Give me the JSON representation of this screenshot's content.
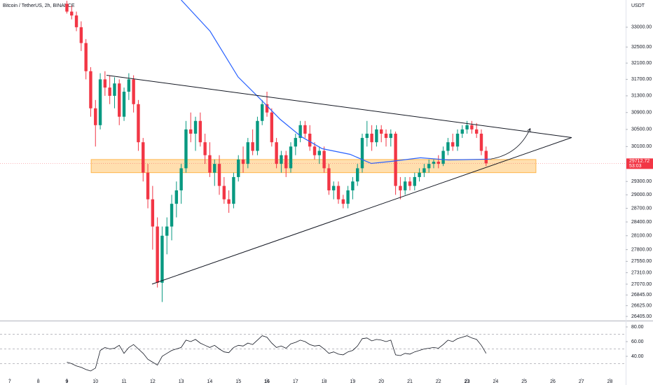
{
  "chart_data": {
    "type": "candlestick",
    "title": "Bitcoin / TetherUS, 2h, BINANCE",
    "currency_label": "USDT",
    "log_scale": true,
    "xlim": [
      6.66,
      28.55
    ],
    "ylim": [
      26320,
      33700
    ],
    "xticks": [
      7,
      8,
      9,
      10,
      11,
      12,
      13,
      14,
      15,
      16,
      17,
      18,
      19,
      20,
      21,
      22,
      23,
      24,
      25,
      26,
      27,
      28
    ],
    "bold_xticks": [
      9,
      16,
      23
    ],
    "yticks": [
      {
        "value": 33000,
        "label": "33000.00"
      },
      {
        "value": 32500,
        "label": "32500.00"
      },
      {
        "value": 32100,
        "label": "32100.00"
      },
      {
        "value": 31700,
        "label": "31700.00"
      },
      {
        "value": 31300,
        "label": "31300.00"
      },
      {
        "value": 30900,
        "label": "30900.00"
      },
      {
        "value": 30500,
        "label": "30500.00"
      },
      {
        "value": 30100,
        "label": "30100.00"
      },
      {
        "value": 29300,
        "label": "29300.00"
      },
      {
        "value": 29000,
        "label": "29000.00"
      },
      {
        "value": 28700,
        "label": "28700.00"
      },
      {
        "value": 28400,
        "label": "28400.00"
      },
      {
        "value": 28100,
        "label": "28100.00"
      },
      {
        "value": 27800,
        "label": "27800.00"
      },
      {
        "value": 27550,
        "label": "27550.00"
      },
      {
        "value": 27310,
        "label": "27310.00"
      },
      {
        "value": 27070,
        "label": "27070.00"
      },
      {
        "value": 26845,
        "label": "26845.00"
      },
      {
        "value": 26625,
        "label": "26625.00"
      },
      {
        "value": 26405,
        "label": "26405.00"
      }
    ],
    "up_color": "#089981",
    "down_color": "#f23645",
    "x": [
      9,
      9.167,
      9.333,
      9.5,
      9.667,
      9.833,
      10,
      10.167,
      10.333,
      10.5,
      10.667,
      10.833,
      11,
      11.167,
      11.333,
      11.5,
      11.667,
      11.833,
      12,
      12.167,
      12.333,
      12.5,
      12.667,
      12.833,
      13,
      13.167,
      13.333,
      13.5,
      13.667,
      13.833,
      14,
      14.167,
      14.333,
      14.5,
      14.667,
      14.833,
      15,
      15.167,
      15.333,
      15.5,
      15.667,
      15.833,
      16,
      16.167,
      16.333,
      16.5,
      16.667,
      16.833,
      17,
      17.167,
      17.333,
      17.5,
      17.667,
      17.833,
      18,
      18.167,
      18.333,
      18.5,
      18.667,
      18.833,
      19,
      19.167,
      19.333,
      19.5,
      19.667,
      19.833,
      20,
      20.167,
      20.333,
      20.5,
      20.667,
      20.833,
      21,
      21.167,
      21.333,
      21.5,
      21.667,
      21.833,
      22,
      22.167,
      22.333,
      22.5,
      22.667,
      22.833,
      23,
      23.167,
      23.333,
      23.5,
      23.667
    ],
    "ohlc": [
      [
        33600,
        33680,
        33350,
        33400
      ],
      [
        33400,
        33550,
        33200,
        33300
      ],
      [
        33300,
        33400,
        32900,
        33000
      ],
      [
        33000,
        33150,
        32400,
        32600
      ],
      [
        32600,
        32700,
        31700,
        31900
      ],
      [
        31900,
        32000,
        30800,
        31000
      ],
      [
        31000,
        31200,
        30100,
        30600
      ],
      [
        30600,
        31850,
        30500,
        31700
      ],
      [
        31700,
        31900,
        31300,
        31500
      ],
      [
        31500,
        31800,
        31100,
        31300
      ],
      [
        31300,
        31750,
        31000,
        31600
      ],
      [
        31600,
        31700,
        30600,
        30800
      ],
      [
        30800,
        31500,
        30700,
        31400
      ],
      [
        31400,
        31850,
        31200,
        31700
      ],
      [
        31700,
        31800,
        30900,
        31100
      ],
      [
        31100,
        31200,
        30000,
        30200
      ],
      [
        30200,
        30300,
        29300,
        29500
      ],
      [
        29500,
        29700,
        28700,
        28900
      ],
      [
        28900,
        29200,
        27800,
        28300
      ],
      [
        28300,
        28500,
        27000,
        27100
      ],
      [
        27100,
        28300,
        26700,
        28100
      ],
      [
        28100,
        28500,
        27700,
        28300
      ],
      [
        28300,
        29000,
        28000,
        28800
      ],
      [
        28800,
        29300,
        28500,
        29100
      ],
      [
        29100,
        29700,
        28800,
        29600
      ],
      [
        29600,
        30700,
        29500,
        30500
      ],
      [
        30500,
        30900,
        30200,
        30400
      ],
      [
        30400,
        30800,
        30000,
        30700
      ],
      [
        30700,
        30900,
        30100,
        30200
      ],
      [
        30200,
        30400,
        29700,
        29900
      ],
      [
        29900,
        30200,
        29400,
        29500
      ],
      [
        29500,
        29800,
        29200,
        29700
      ],
      [
        29700,
        29900,
        29000,
        29200
      ],
      [
        29200,
        29400,
        28800,
        28900
      ],
      [
        28900,
        29100,
        28600,
        28800
      ],
      [
        28800,
        29500,
        28700,
        29400
      ],
      [
        29400,
        29900,
        29300,
        29800
      ],
      [
        29800,
        30100,
        29500,
        29700
      ],
      [
        29700,
        30300,
        29600,
        30200
      ],
      [
        30200,
        30500,
        29900,
        30000
      ],
      [
        30000,
        30800,
        29900,
        30700
      ],
      [
        30700,
        31200,
        30600,
        31100
      ],
      [
        31100,
        31400,
        30800,
        30900
      ],
      [
        30900,
        31000,
        30100,
        30200
      ],
      [
        30200,
        30300,
        29600,
        29700
      ],
      [
        29700,
        30000,
        29500,
        29900
      ],
      [
        29900,
        30000,
        29400,
        29600
      ],
      [
        29600,
        30200,
        29500,
        30100
      ],
      [
        30100,
        30400,
        29900,
        30300
      ],
      [
        30300,
        30700,
        30200,
        30600
      ],
      [
        30600,
        30700,
        30300,
        30400
      ],
      [
        30400,
        30600,
        30000,
        30100
      ],
      [
        30100,
        30200,
        29800,
        29900
      ],
      [
        29900,
        30100,
        29700,
        30000
      ],
      [
        30000,
        30100,
        29500,
        29600
      ],
      [
        29600,
        29700,
        29000,
        29100
      ],
      [
        29100,
        29300,
        28900,
        29200
      ],
      [
        29200,
        29300,
        28800,
        28900
      ],
      [
        28900,
        29000,
        28700,
        28800
      ],
      [
        28800,
        29200,
        28700,
        29100
      ],
      [
        29100,
        29400,
        28900,
        29300
      ],
      [
        29300,
        29700,
        29200,
        29600
      ],
      [
        29600,
        30400,
        29500,
        30300
      ],
      [
        30300,
        30700,
        30100,
        30400
      ],
      [
        30400,
        30600,
        30000,
        30200
      ],
      [
        30200,
        30600,
        30100,
        30500
      ],
      [
        30500,
        30600,
        30200,
        30400
      ],
      [
        30400,
        30500,
        30100,
        30300
      ],
      [
        30300,
        30500,
        30100,
        30400
      ],
      [
        30400,
        30450,
        29000,
        29200
      ],
      [
        29200,
        29400,
        28900,
        29100
      ],
      [
        29100,
        29400,
        29000,
        29300
      ],
      [
        29300,
        29400,
        29100,
        29200
      ],
      [
        29200,
        29500,
        29100,
        29400
      ],
      [
        29400,
        29600,
        29300,
        29500
      ],
      [
        29500,
        29700,
        29400,
        29600
      ],
      [
        29600,
        29800,
        29500,
        29700
      ],
      [
        29700,
        29800,
        29600,
        29750
      ],
      [
        29750,
        29900,
        29600,
        29700
      ],
      [
        29700,
        30100,
        29650,
        30000
      ],
      [
        30000,
        30300,
        29900,
        30200
      ],
      [
        30200,
        30400,
        30000,
        30100
      ],
      [
        30100,
        30500,
        30000,
        30400
      ],
      [
        30400,
        30600,
        30300,
        30500
      ],
      [
        30500,
        30700,
        30400,
        30600
      ],
      [
        30600,
        30700,
        30400,
        30500
      ],
      [
        30500,
        30650,
        30300,
        30400
      ],
      [
        30400,
        30500,
        29900,
        30000
      ],
      [
        30000,
        30100,
        29650,
        29712.72
      ]
    ],
    "countdown": "53:03",
    "ma": {
      "color": "#2962ff",
      "x": [
        13.0,
        14.01,
        14.99,
        15.73,
        16.46,
        17.2,
        17.93,
        18.91,
        19.65,
        20.39,
        21.37,
        22.35,
        23.82
      ],
      "values": [
        33700,
        32900,
        31760,
        31250,
        30740,
        30330,
        30050,
        29920,
        29710,
        29760,
        29840,
        29790,
        29810
      ]
    },
    "zone": {
      "color": "#ffb74d",
      "x": [
        9.85,
        25.41
      ],
      "values": [
        29500,
        29800
      ]
    },
    "trendlines": [
      {
        "x": [
          10.385,
          26.66
        ],
        "values": [
          31800,
          30310
        ]
      },
      {
        "x": [
          11.98,
          26.66
        ],
        "values": [
          27070,
          30310
        ]
      }
    ],
    "arrow": {
      "x": [
        23.82,
        24.8,
        25.21
      ],
      "values": [
        29810,
        29920,
        30520
      ]
    },
    "rsi": {
      "color": "#131722",
      "ylim": [
        10.5,
        86.7
      ],
      "yticks": [
        {
          "value": 80,
          "label": "80.00"
        },
        {
          "value": 60,
          "label": "60.00"
        },
        {
          "value": 40,
          "label": "40.00"
        }
      ],
      "bands": [
        70,
        50,
        30
      ],
      "values": [
        32,
        30,
        27,
        25,
        22,
        20,
        24,
        48,
        52,
        50,
        51,
        55,
        44,
        52,
        56,
        50,
        44,
        36,
        32,
        28,
        40,
        44,
        48,
        50,
        52,
        62,
        60,
        63,
        58,
        55,
        52,
        55,
        50,
        46,
        45,
        52,
        55,
        54,
        58,
        56,
        62,
        68,
        66,
        58,
        52,
        54,
        51,
        57,
        59,
        62,
        60,
        56,
        54,
        55,
        50,
        44,
        46,
        43,
        42,
        46,
        48,
        54,
        64,
        65,
        61,
        63,
        62,
        60,
        62,
        42,
        41,
        44,
        43,
        46,
        48,
        50,
        51,
        52,
        51,
        56,
        62,
        60,
        64,
        66,
        68,
        65,
        63,
        55,
        44
      ]
    }
  }
}
